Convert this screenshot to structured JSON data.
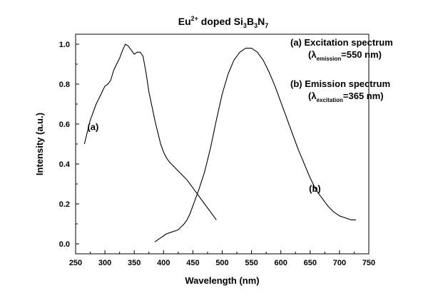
{
  "chart_data": {
    "type": "line",
    "title": {
      "segments": [
        {
          "text": "Eu",
          "pos": "normal"
        },
        {
          "text": "2+",
          "pos": "sup"
        },
        {
          "text": " doped Si",
          "pos": "normal"
        },
        {
          "text": "3",
          "pos": "sub"
        },
        {
          "text": "B",
          "pos": "normal"
        },
        {
          "text": "3",
          "pos": "sub"
        },
        {
          "text": "N",
          "pos": "normal"
        },
        {
          "text": "7",
          "pos": "sub"
        }
      ]
    },
    "xlabel": "Wavelength (nm)",
    "ylabel": "Intensity (a.u.)",
    "xlim": [
      250,
      750
    ],
    "ylim": [
      -0.05,
      1.05
    ],
    "xticks": [
      250,
      300,
      350,
      400,
      450,
      500,
      550,
      600,
      650,
      700,
      750
    ],
    "yticks": [
      0.0,
      0.2,
      0.4,
      0.6,
      0.8,
      1.0
    ],
    "ytick_labels": [
      "0.0",
      "0.2",
      "0.4",
      "0.6",
      "0.8",
      "1.0"
    ],
    "grid": false,
    "legend": "none",
    "series": [
      {
        "label": "(a)",
        "label_at": [
          270,
          0.57
        ],
        "x": [
          265,
          270,
          275,
          280,
          285,
          290,
          295,
          300,
          305,
          310,
          315,
          320,
          325,
          330,
          335,
          340,
          345,
          350,
          355,
          360,
          365,
          370,
          375,
          380,
          385,
          390,
          395,
          400,
          405,
          410,
          420,
          430,
          440,
          450,
          460,
          470,
          480,
          490
        ],
        "y": [
          0.5,
          0.56,
          0.62,
          0.66,
          0.7,
          0.73,
          0.76,
          0.79,
          0.8,
          0.82,
          0.87,
          0.9,
          0.93,
          0.97,
          1.0,
          0.99,
          0.97,
          0.95,
          0.96,
          0.96,
          0.94,
          0.86,
          0.76,
          0.69,
          0.62,
          0.56,
          0.5,
          0.46,
          0.43,
          0.41,
          0.38,
          0.35,
          0.32,
          0.28,
          0.24,
          0.2,
          0.16,
          0.12
        ]
      },
      {
        "label": "(b)",
        "label_at": [
          648,
          0.26
        ],
        "x": [
          385,
          395,
          405,
          415,
          425,
          435,
          440,
          445,
          450,
          455,
          460,
          470,
          480,
          490,
          500,
          510,
          520,
          530,
          540,
          545,
          550,
          555,
          560,
          570,
          580,
          590,
          600,
          610,
          620,
          630,
          640,
          650,
          660,
          670,
          680,
          690,
          700,
          710,
          720,
          728
        ],
        "y": [
          0.01,
          0.03,
          0.05,
          0.06,
          0.07,
          0.1,
          0.12,
          0.15,
          0.19,
          0.23,
          0.27,
          0.36,
          0.48,
          0.62,
          0.75,
          0.85,
          0.92,
          0.96,
          0.98,
          0.98,
          0.98,
          0.97,
          0.96,
          0.92,
          0.86,
          0.79,
          0.71,
          0.63,
          0.55,
          0.47,
          0.4,
          0.33,
          0.27,
          0.23,
          0.19,
          0.16,
          0.14,
          0.13,
          0.12,
          0.12
        ]
      }
    ],
    "annotations": [
      {
        "segments": [
          {
            "text": "(a) Excitation spectrum",
            "pos": "normal"
          }
        ]
      },
      {
        "segments": [
          {
            "text": "(λ",
            "pos": "normal"
          },
          {
            "text": "emission",
            "pos": "sub"
          },
          {
            "text": "=550 nm)",
            "pos": "normal"
          }
        ]
      },
      {
        "segments": [
          {
            "text": "(b) Emission spectrum",
            "pos": "normal"
          }
        ]
      },
      {
        "segments": [
          {
            "text": "(λ",
            "pos": "normal"
          },
          {
            "text": "excitation",
            "pos": "sub"
          },
          {
            "text": "=365 nm)",
            "pos": "normal"
          }
        ]
      }
    ]
  }
}
